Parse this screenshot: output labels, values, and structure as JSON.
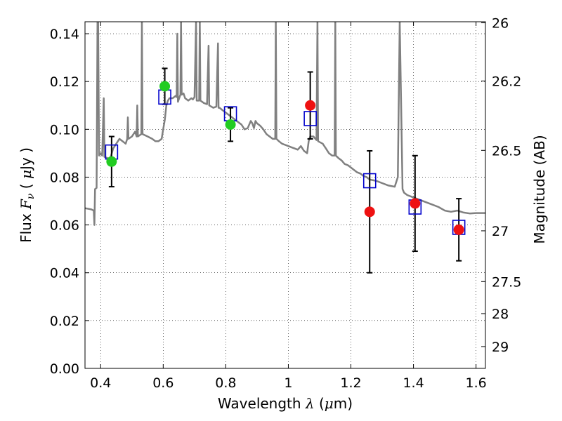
{
  "chart_data": {
    "type": "scatter",
    "xlabel_prefix": "Wavelength  ",
    "xlabel_symbol": "λ",
    "xlabel_unit": " (",
    "xlabel_mu": "μ",
    "xlabel_suffix": "m)",
    "ylabel_prefix": "Flux  ",
    "ylabel_symbol": "F",
    "ylabel_sub": "ν",
    "ylabel_unit_open": "  ( ",
    "ylabel_mu": "μ",
    "ylabel_unit_close": "Jy )",
    "y2label": "Magnitude (AB)",
    "xlim": [
      0.35,
      1.63
    ],
    "ylim": [
      0.0,
      0.145
    ],
    "x_ticks": [
      {
        "value": 0.4,
        "label": "0.4"
      },
      {
        "value": 0.6,
        "label": "0.6"
      },
      {
        "value": 0.8,
        "label": "0.8"
      },
      {
        "value": 1.0,
        "label": "1"
      },
      {
        "value": 1.2,
        "label": "1.2"
      },
      {
        "value": 1.4,
        "label": "1.4"
      },
      {
        "value": 1.6,
        "label": "1.6"
      }
    ],
    "y_ticks": [
      {
        "value": 0.0,
        "label": "0.00"
      },
      {
        "value": 0.02,
        "label": "0.02"
      },
      {
        "value": 0.04,
        "label": "0.04"
      },
      {
        "value": 0.06,
        "label": "0.06"
      },
      {
        "value": 0.08,
        "label": "0.08"
      },
      {
        "value": 0.1,
        "label": "0.10"
      },
      {
        "value": 0.12,
        "label": "0.12"
      },
      {
        "value": 0.14,
        "label": "0.14"
      }
    ],
    "y2_ticks": [
      {
        "mag": 26.0,
        "label": "26"
      },
      {
        "mag": 26.2,
        "label": "26.2"
      },
      {
        "mag": 26.5,
        "label": "26.5"
      },
      {
        "mag": 27.0,
        "label": "27"
      },
      {
        "mag": 27.5,
        "label": "27.5"
      },
      {
        "mag": 28.0,
        "label": "28"
      },
      {
        "mag": 29.0,
        "label": "29"
      }
    ],
    "grid": true,
    "colors": {
      "spectrum": "#808080",
      "model_box": "#0000cc",
      "green_point": "#22cc22",
      "red_point": "#ee1111",
      "error_bar": "#000000"
    },
    "model_spectrum": [
      [
        0.35,
        0.067
      ],
      [
        0.37,
        0.0665
      ],
      [
        0.378,
        0.066
      ],
      [
        0.38,
        0.06
      ],
      [
        0.382,
        0.075
      ],
      [
        0.387,
        0.0755
      ],
      [
        0.39,
        0.145
      ],
      [
        0.392,
        0.145
      ],
      [
        0.395,
        0.089
      ],
      [
        0.4,
        0.09
      ],
      [
        0.405,
        0.089
      ],
      [
        0.41,
        0.113
      ],
      [
        0.412,
        0.0885
      ],
      [
        0.43,
        0.0875
      ],
      [
        0.44,
        0.092
      ],
      [
        0.45,
        0.094
      ],
      [
        0.46,
        0.096
      ],
      [
        0.47,
        0.095
      ],
      [
        0.48,
        0.094
      ],
      [
        0.485,
        0.096
      ],
      [
        0.487,
        0.105
      ],
      [
        0.489,
        0.096
      ],
      [
        0.5,
        0.097
      ],
      [
        0.51,
        0.099
      ],
      [
        0.515,
        0.097
      ],
      [
        0.517,
        0.11
      ],
      [
        0.519,
        0.097
      ],
      [
        0.53,
        0.098
      ],
      [
        0.532,
        0.145
      ],
      [
        0.534,
        0.098
      ],
      [
        0.55,
        0.097
      ],
      [
        0.565,
        0.096
      ],
      [
        0.575,
        0.095
      ],
      [
        0.585,
        0.095
      ],
      [
        0.595,
        0.096
      ],
      [
        0.6,
        0.1
      ],
      [
        0.605,
        0.104
      ],
      [
        0.61,
        0.11
      ],
      [
        0.615,
        0.112
      ],
      [
        0.62,
        0.113
      ],
      [
        0.63,
        0.113
      ],
      [
        0.64,
        0.114
      ],
      [
        0.643,
        0.1135
      ],
      [
        0.645,
        0.14
      ],
      [
        0.647,
        0.1115
      ],
      [
        0.655,
        0.1145
      ],
      [
        0.657,
        0.145
      ],
      [
        0.659,
        0.1145
      ],
      [
        0.665,
        0.115
      ],
      [
        0.67,
        0.113
      ],
      [
        0.68,
        0.112
      ],
      [
        0.69,
        0.113
      ],
      [
        0.695,
        0.1125
      ],
      [
        0.7,
        0.1135
      ],
      [
        0.705,
        0.145
      ],
      [
        0.707,
        0.112
      ],
      [
        0.715,
        0.112
      ],
      [
        0.717,
        0.145
      ],
      [
        0.719,
        0.112
      ],
      [
        0.73,
        0.111
      ],
      [
        0.74,
        0.1105
      ],
      [
        0.745,
        0.135
      ],
      [
        0.747,
        0.11
      ],
      [
        0.76,
        0.109
      ],
      [
        0.77,
        0.1095
      ],
      [
        0.775,
        0.136
      ],
      [
        0.777,
        0.109
      ],
      [
        0.78,
        0.109
      ],
      [
        0.79,
        0.108
      ],
      [
        0.8,
        0.107
      ],
      [
        0.81,
        0.106
      ],
      [
        0.82,
        0.105
      ],
      [
        0.83,
        0.104
      ],
      [
        0.84,
        0.103
      ],
      [
        0.85,
        0.102
      ],
      [
        0.86,
        0.1
      ],
      [
        0.87,
        0.1005
      ],
      [
        0.88,
        0.1035
      ],
      [
        0.885,
        0.1025
      ],
      [
        0.89,
        0.1005
      ],
      [
        0.895,
        0.1035
      ],
      [
        0.9,
        0.1025
      ],
      [
        0.91,
        0.1015
      ],
      [
        0.92,
        0.1
      ],
      [
        0.93,
        0.098
      ],
      [
        0.94,
        0.097
      ],
      [
        0.95,
        0.096
      ],
      [
        0.958,
        0.096
      ],
      [
        0.96,
        0.145
      ],
      [
        0.962,
        0.096
      ],
      [
        0.97,
        0.095
      ],
      [
        0.98,
        0.094
      ],
      [
        0.99,
        0.0935
      ],
      [
        1.0,
        0.093
      ],
      [
        1.01,
        0.0925
      ],
      [
        1.02,
        0.092
      ],
      [
        1.03,
        0.0915
      ],
      [
        1.04,
        0.093
      ],
      [
        1.05,
        0.091
      ],
      [
        1.06,
        0.09
      ],
      [
        1.065,
        0.095
      ],
      [
        1.07,
        0.097
      ],
      [
        1.08,
        0.097
      ],
      [
        1.09,
        0.0955
      ],
      [
        1.093,
        0.145
      ],
      [
        1.095,
        0.095
      ],
      [
        1.11,
        0.094
      ],
      [
        1.12,
        0.092
      ],
      [
        1.13,
        0.09
      ],
      [
        1.14,
        0.089
      ],
      [
        1.148,
        0.089
      ],
      [
        1.15,
        0.145
      ],
      [
        1.152,
        0.089
      ],
      [
        1.16,
        0.088
      ],
      [
        1.17,
        0.087
      ],
      [
        1.18,
        0.0855
      ],
      [
        1.19,
        0.085
      ],
      [
        1.2,
        0.084
      ],
      [
        1.21,
        0.083
      ],
      [
        1.22,
        0.082
      ],
      [
        1.23,
        0.0815
      ],
      [
        1.24,
        0.0805
      ],
      [
        1.25,
        0.08
      ],
      [
        1.26,
        0.079
      ],
      [
        1.28,
        0.0785
      ],
      [
        1.3,
        0.0775
      ],
      [
        1.32,
        0.0765
      ],
      [
        1.34,
        0.076
      ],
      [
        1.35,
        0.08
      ],
      [
        1.356,
        0.145
      ],
      [
        1.362,
        0.098
      ],
      [
        1.365,
        0.075
      ],
      [
        1.37,
        0.0735
      ],
      [
        1.38,
        0.0725
      ],
      [
        1.4,
        0.0715
      ],
      [
        1.42,
        0.0705
      ],
      [
        1.44,
        0.0695
      ],
      [
        1.46,
        0.0685
      ],
      [
        1.48,
        0.0675
      ],
      [
        1.5,
        0.066
      ],
      [
        1.52,
        0.0655
      ],
      [
        1.54,
        0.066
      ],
      [
        1.56,
        0.0652
      ],
      [
        1.58,
        0.0648
      ],
      [
        1.6,
        0.065
      ],
      [
        1.63,
        0.065
      ]
    ],
    "model_photometry": [
      {
        "x": 0.435,
        "y": 0.0905
      },
      {
        "x": 0.605,
        "y": 0.1135
      },
      {
        "x": 0.815,
        "y": 0.1065
      },
      {
        "x": 1.07,
        "y": 0.1045
      },
      {
        "x": 1.26,
        "y": 0.0785
      },
      {
        "x": 1.405,
        "y": 0.0675
      },
      {
        "x": 1.545,
        "y": 0.059
      }
    ],
    "observed_optical": [
      {
        "x": 0.435,
        "y": 0.0865,
        "err": 0.0105
      },
      {
        "x": 0.605,
        "y": 0.118,
        "err": 0.0075
      },
      {
        "x": 0.815,
        "y": 0.102,
        "err": 0.007
      }
    ],
    "observed_nir": [
      {
        "x": 1.07,
        "y": 0.11,
        "err": 0.014
      },
      {
        "x": 1.26,
        "y": 0.0655,
        "err": 0.0255
      },
      {
        "x": 1.405,
        "y": 0.069,
        "err": 0.02
      },
      {
        "x": 1.545,
        "y": 0.058,
        "err": 0.013
      }
    ]
  }
}
